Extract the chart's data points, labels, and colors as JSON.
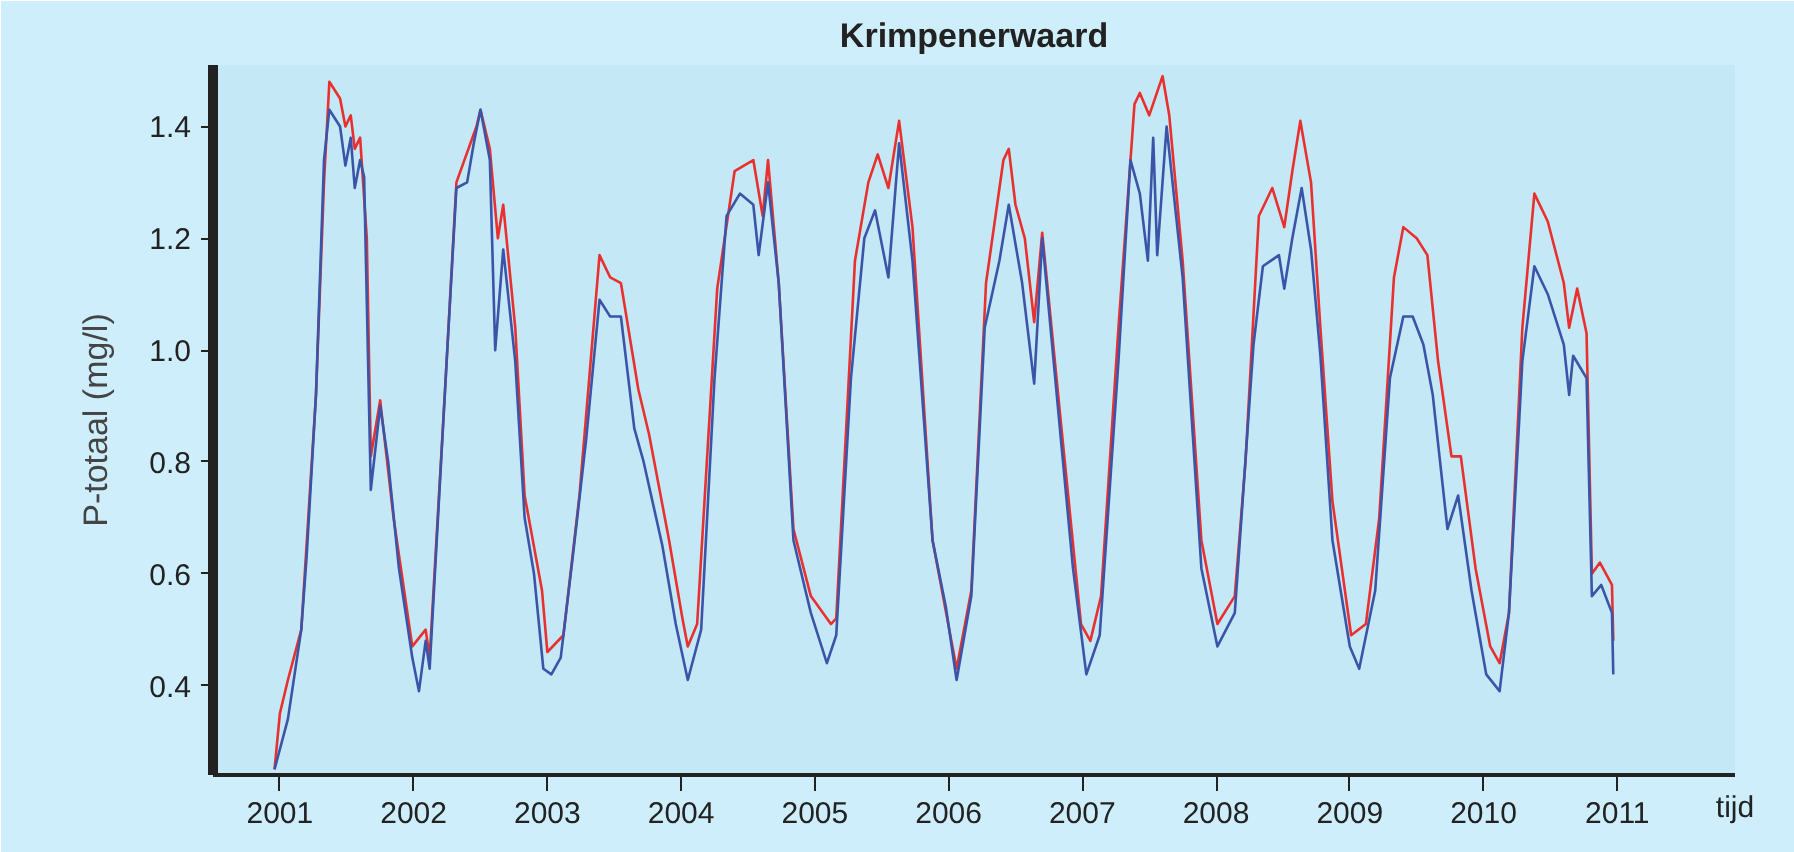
{
  "chart_data": {
    "type": "line",
    "title": "Krimpenerwaard",
    "xlabel": "tijd",
    "ylabel": "P-totaal (mg/l)",
    "xlim": [
      2000.5,
      2011.88
    ],
    "ylim": [
      0.24,
      1.51
    ],
    "xticks": [
      2001,
      2002,
      2003,
      2004,
      2005,
      2006,
      2007,
      2008,
      2009,
      2010,
      2011
    ],
    "yticks": [
      {
        "value": 0.4,
        "label": "0.4"
      },
      {
        "value": 0.6,
        "label": "0.6"
      },
      {
        "value": 0.8,
        "label": "0.8"
      },
      {
        "value": 1.0,
        "label": "1.0"
      },
      {
        "value": 1.2,
        "label": "1.2"
      },
      {
        "value": 1.4,
        "label": "1.4"
      }
    ],
    "grid": false,
    "series": [
      {
        "color": "#e8302f",
        "x": [
          2000.96,
          2001.0,
          2001.06,
          2001.16,
          2001.27,
          2001.33,
          2001.37,
          2001.45,
          2001.49,
          2001.53,
          2001.56,
          2001.6,
          2001.65,
          2001.68,
          2001.75,
          2001.85,
          2001.99,
          2002.09,
          2002.12,
          2002.24,
          2002.32,
          2002.47,
          2002.5,
          2002.57,
          2002.63,
          2002.67,
          2002.76,
          2002.83,
          2002.96,
          2003.0,
          2003.12,
          2003.24,
          2003.39,
          2003.47,
          2003.55,
          2003.68,
          2003.76,
          2003.91,
          2004.01,
          2004.05,
          2004.12,
          2004.27,
          2004.4,
          2004.54,
          2004.61,
          2004.65,
          2004.73,
          2004.84,
          2004.97,
          2005.12,
          2005.16,
          2005.3,
          2005.4,
          2005.47,
          2005.55,
          2005.63,
          2005.73,
          2005.88,
          2006.06,
          2006.17,
          2006.28,
          2006.41,
          2006.45,
          2006.5,
          2006.57,
          2006.64,
          2006.7,
          2006.84,
          2006.99,
          2007.06,
          2007.14,
          2007.27,
          2007.39,
          2007.43,
          2007.5,
          2007.6,
          2007.65,
          2007.75,
          2007.89,
          2008.01,
          2008.14,
          2008.22,
          2008.32,
          2008.42,
          2008.51,
          2008.57,
          2008.63,
          2008.71,
          2008.78,
          2008.87,
          2009.01,
          2009.12,
          2009.22,
          2009.33,
          2009.4,
          2009.5,
          2009.58,
          2009.66,
          2009.76,
          2009.83,
          2009.94,
          2010.05,
          2010.12,
          2010.19,
          2010.29,
          2010.38,
          2010.48,
          2010.6,
          2010.64,
          2010.7,
          2010.77,
          2010.81,
          2010.87,
          2010.96,
          2010.97
        ],
        "values": [
          0.25,
          0.35,
          0.41,
          0.5,
          0.92,
          1.3,
          1.48,
          1.45,
          1.4,
          1.42,
          1.36,
          1.38,
          1.2,
          0.81,
          0.91,
          0.7,
          0.47,
          0.5,
          0.45,
          0.95,
          1.3,
          1.4,
          1.43,
          1.36,
          1.2,
          1.26,
          1.04,
          0.74,
          0.57,
          0.46,
          0.49,
          0.74,
          1.17,
          1.13,
          1.12,
          0.93,
          0.85,
          0.66,
          0.52,
          0.47,
          0.51,
          1.11,
          1.32,
          1.34,
          1.24,
          1.34,
          1.12,
          0.68,
          0.56,
          0.51,
          0.52,
          1.16,
          1.3,
          1.35,
          1.29,
          1.41,
          1.22,
          0.66,
          0.43,
          0.57,
          1.12,
          1.34,
          1.36,
          1.26,
          1.2,
          1.05,
          1.21,
          0.87,
          0.51,
          0.48,
          0.56,
          1.04,
          1.44,
          1.46,
          1.42,
          1.49,
          1.42,
          1.16,
          0.66,
          0.51,
          0.56,
          0.8,
          1.24,
          1.29,
          1.22,
          1.32,
          1.41,
          1.3,
          1.04,
          0.73,
          0.49,
          0.51,
          0.7,
          1.13,
          1.22,
          1.2,
          1.17,
          0.98,
          0.81,
          0.81,
          0.61,
          0.47,
          0.44,
          0.53,
          1.04,
          1.28,
          1.23,
          1.12,
          1.04,
          1.11,
          1.03,
          0.6,
          0.62,
          0.58,
          0.48
        ]
      },
      {
        "color": "#3a55a8",
        "x": [
          2000.96,
          2001.06,
          2001.16,
          2001.2,
          2001.27,
          2001.33,
          2001.37,
          2001.45,
          2001.49,
          2001.53,
          2001.56,
          2001.6,
          2001.63,
          2001.68,
          2001.75,
          2001.81,
          2001.89,
          2001.99,
          2002.04,
          2002.09,
          2002.12,
          2002.24,
          2002.32,
          2002.4,
          2002.45,
          2002.5,
          2002.57,
          2002.61,
          2002.67,
          2002.76,
          2002.83,
          2002.9,
          2002.97,
          2003.03,
          2003.1,
          2003.19,
          2003.29,
          2003.39,
          2003.47,
          2003.55,
          2003.65,
          2003.72,
          2003.86,
          2003.96,
          2004.05,
          2004.15,
          2004.25,
          2004.34,
          2004.44,
          2004.54,
          2004.58,
          2004.65,
          2004.73,
          2004.84,
          2004.97,
          2005.09,
          2005.16,
          2005.27,
          2005.37,
          2005.45,
          2005.55,
          2005.63,
          2005.73,
          2005.88,
          2005.98,
          2006.06,
          2006.17,
          2006.27,
          2006.38,
          2006.45,
          2006.55,
          2006.64,
          2006.7,
          2006.84,
          2006.93,
          2007.03,
          2007.13,
          2007.27,
          2007.36,
          2007.43,
          2007.49,
          2007.53,
          2007.56,
          2007.63,
          2007.75,
          2007.89,
          2008.01,
          2008.14,
          2008.28,
          2008.35,
          2008.47,
          2008.51,
          2008.57,
          2008.64,
          2008.71,
          2008.78,
          2008.87,
          2009.0,
          2009.07,
          2009.19,
          2009.3,
          2009.4,
          2009.47,
          2009.55,
          2009.62,
          2009.73,
          2009.81,
          2009.91,
          2010.02,
          2010.12,
          2010.19,
          2010.29,
          2010.38,
          2010.48,
          2010.6,
          2010.64,
          2010.67,
          2010.77,
          2010.81,
          2010.88,
          2010.96,
          2010.97
        ],
        "values": [
          0.25,
          0.34,
          0.5,
          0.63,
          0.92,
          1.34,
          1.43,
          1.4,
          1.33,
          1.38,
          1.29,
          1.34,
          1.31,
          0.75,
          0.9,
          0.8,
          0.61,
          0.45,
          0.39,
          0.48,
          0.43,
          0.95,
          1.29,
          1.3,
          1.37,
          1.43,
          1.34,
          1.0,
          1.18,
          0.98,
          0.7,
          0.6,
          0.43,
          0.42,
          0.45,
          0.63,
          0.84,
          1.09,
          1.06,
          1.06,
          0.86,
          0.8,
          0.65,
          0.51,
          0.41,
          0.5,
          0.95,
          1.24,
          1.28,
          1.26,
          1.17,
          1.3,
          1.12,
          0.66,
          0.53,
          0.44,
          0.49,
          0.95,
          1.2,
          1.25,
          1.13,
          1.37,
          1.16,
          0.66,
          0.54,
          0.41,
          0.56,
          1.04,
          1.16,
          1.26,
          1.12,
          0.94,
          1.2,
          0.84,
          0.61,
          0.42,
          0.49,
          0.98,
          1.34,
          1.28,
          1.16,
          1.38,
          1.17,
          1.4,
          1.13,
          0.61,
          0.47,
          0.53,
          1.01,
          1.15,
          1.17,
          1.11,
          1.2,
          1.29,
          1.18,
          0.99,
          0.66,
          0.47,
          0.43,
          0.57,
          0.95,
          1.06,
          1.06,
          1.01,
          0.92,
          0.68,
          0.74,
          0.57,
          0.42,
          0.39,
          0.53,
          0.98,
          1.15,
          1.1,
          1.01,
          0.92,
          0.99,
          0.95,
          0.56,
          0.58,
          0.53,
          0.42
        ]
      }
    ]
  }
}
